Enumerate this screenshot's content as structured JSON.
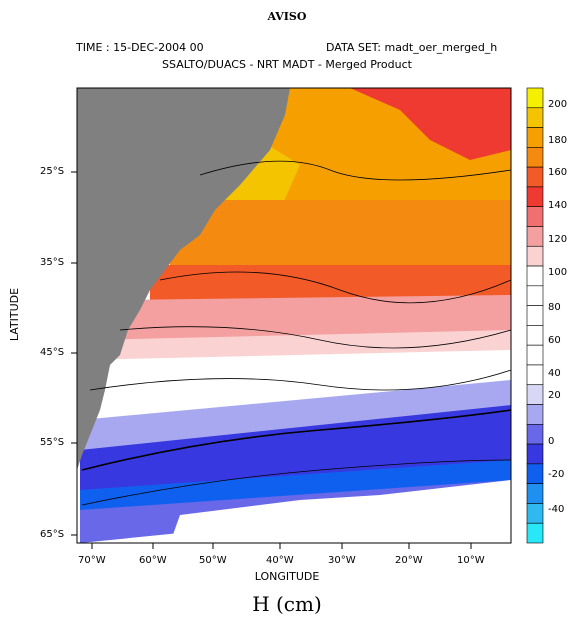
{
  "figure": {
    "title": "AVISO",
    "time_label": "TIME : 15-DEC-2004 00",
    "dataset_label": "DATA SET: madt_oer_merged_h",
    "subtitle": "SSALTO/DUACS - NRT MADT - Merged Product",
    "xlabel": "LONGITUDE",
    "ylabel": "LATITUDE",
    "units_label": "H (cm)"
  },
  "map": {
    "lon_range": [
      -74,
      -2
    ],
    "lat_range": [
      -66.5,
      -14.5
    ],
    "x_ticks": [
      "70°W",
      "60°W",
      "50°W",
      "40°W",
      "30°W",
      "20°W",
      "10°W"
    ],
    "y_ticks": [
      "25°S",
      "35°S",
      "45°S",
      "55°S",
      "65°S"
    ],
    "land_color": "#808080"
  },
  "colorbar": {
    "labels": [
      "200",
      "180",
      "160",
      "140",
      "120",
      "100",
      "80",
      "60",
      "40",
      "20",
      "0",
      "-20",
      "-40"
    ],
    "colors": [
      "#f5f000",
      "#f5c400",
      "#f5a000",
      "#f58a10",
      "#f25a28",
      "#ee3a30",
      "#f07070",
      "#f4a0a0",
      "#fad2d2",
      "#ffffff",
      "#ffffff",
      "#ffffff",
      "#ffffff",
      "#ffffff",
      "#ffffff",
      "#d8d8f6",
      "#a8a8f0",
      "#6868e8",
      "#3838e0",
      "#1060f0",
      "#2090f0",
      "#30b8f0",
      "#28e8f8"
    ]
  }
}
